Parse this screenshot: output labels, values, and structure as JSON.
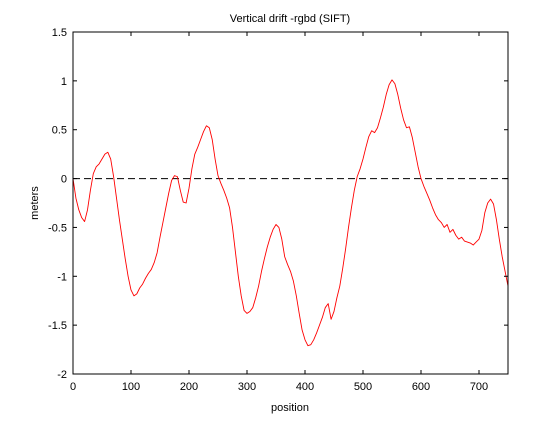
{
  "chart_data": {
    "type": "line",
    "title": "Vertical drift -rgbd (SIFT)",
    "xlabel": "position",
    "ylabel": "meters",
    "xlim": [
      0,
      750
    ],
    "ylim": [
      -2,
      1.5
    ],
    "xticks": [
      0,
      100,
      200,
      300,
      400,
      500,
      600,
      700
    ],
    "yticks": [
      -2,
      -1.5,
      -1,
      -0.5,
      0,
      0.5,
      1,
      1.5
    ],
    "grid": false,
    "series": [
      {
        "color": "#ff0000",
        "x": [
          0,
          5,
          10,
          15,
          20,
          25,
          30,
          35,
          40,
          45,
          50,
          55,
          60,
          65,
          70,
          75,
          80,
          85,
          90,
          95,
          100,
          105,
          110,
          115,
          120,
          125,
          130,
          135,
          140,
          145,
          150,
          155,
          160,
          165,
          170,
          175,
          180,
          185,
          190,
          195,
          200,
          205,
          210,
          215,
          220,
          225,
          230,
          235,
          240,
          245,
          250,
          255,
          260,
          265,
          270,
          275,
          280,
          285,
          290,
          295,
          300,
          305,
          310,
          315,
          320,
          325,
          330,
          335,
          340,
          345,
          350,
          355,
          360,
          365,
          370,
          375,
          380,
          385,
          390,
          395,
          400,
          405,
          410,
          415,
          420,
          425,
          430,
          435,
          440,
          445,
          450,
          455,
          460,
          465,
          470,
          475,
          480,
          485,
          490,
          495,
          500,
          505,
          510,
          515,
          520,
          525,
          530,
          535,
          540,
          545,
          550,
          555,
          560,
          565,
          570,
          575,
          580,
          585,
          590,
          595,
          600,
          605,
          610,
          615,
          620,
          625,
          630,
          635,
          640,
          645,
          650,
          655,
          660,
          665,
          670,
          675,
          680,
          685,
          690,
          695,
          700,
          705,
          710,
          715,
          720,
          725,
          730,
          735,
          740,
          745,
          750
        ],
        "y": [
          0.0,
          -0.2,
          -0.32,
          -0.4,
          -0.44,
          -0.32,
          -0.12,
          0.05,
          0.12,
          0.15,
          0.2,
          0.25,
          0.27,
          0.2,
          0.02,
          -0.2,
          -0.42,
          -0.62,
          -0.82,
          -1.0,
          -1.14,
          -1.2,
          -1.18,
          -1.12,
          -1.08,
          -1.02,
          -0.97,
          -0.93,
          -0.86,
          -0.76,
          -0.6,
          -0.45,
          -0.3,
          -0.15,
          -0.02,
          0.03,
          0.02,
          -0.12,
          -0.24,
          -0.25,
          -0.1,
          0.1,
          0.25,
          0.32,
          0.4,
          0.48,
          0.54,
          0.52,
          0.4,
          0.2,
          0.03,
          -0.05,
          -0.12,
          -0.2,
          -0.3,
          -0.5,
          -0.75,
          -1.0,
          -1.2,
          -1.35,
          -1.38,
          -1.36,
          -1.32,
          -1.22,
          -1.1,
          -0.95,
          -0.82,
          -0.7,
          -0.6,
          -0.52,
          -0.47,
          -0.5,
          -0.62,
          -0.8,
          -0.88,
          -0.95,
          -1.05,
          -1.2,
          -1.38,
          -1.55,
          -1.65,
          -1.71,
          -1.7,
          -1.65,
          -1.58,
          -1.5,
          -1.42,
          -1.32,
          -1.28,
          -1.44,
          -1.36,
          -1.22,
          -1.1,
          -0.92,
          -0.72,
          -0.5,
          -0.3,
          -0.12,
          0.02,
          0.1,
          0.2,
          0.32,
          0.43,
          0.49,
          0.47,
          0.52,
          0.62,
          0.73,
          0.86,
          0.96,
          1.01,
          0.97,
          0.86,
          0.72,
          0.6,
          0.52,
          0.53,
          0.42,
          0.27,
          0.12,
          0.0,
          -0.08,
          -0.15,
          -0.22,
          -0.3,
          -0.37,
          -0.42,
          -0.45,
          -0.5,
          -0.47,
          -0.55,
          -0.52,
          -0.58,
          -0.62,
          -0.6,
          -0.64,
          -0.65,
          -0.66,
          -0.68,
          -0.65,
          -0.62,
          -0.53,
          -0.35,
          -0.25,
          -0.21,
          -0.26,
          -0.42,
          -0.62,
          -0.8,
          -0.95,
          -1.1
        ]
      }
    ],
    "reference_lines": [
      {
        "y": 0,
        "style": "dashed",
        "color": "#000000"
      }
    ]
  }
}
